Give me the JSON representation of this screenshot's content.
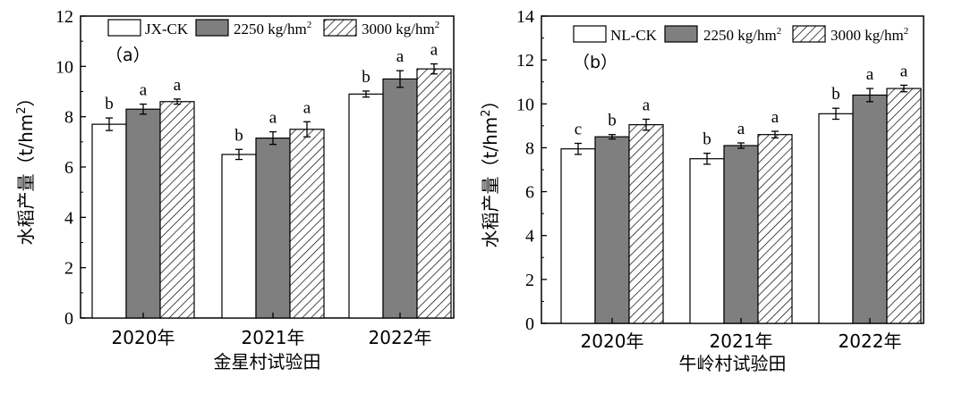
{
  "colors": {
    "ck": "#ffffff",
    "dose2250": "#7f7f7f",
    "dose3000": "hatch",
    "stroke": "#000000"
  },
  "chart_data": [
    {
      "type": "bar",
      "panel": "（a）",
      "xlabel": "金星村试验田",
      "ylabel": "水稻产量（t/hm²）",
      "ylabel_main": "水稻产量（t/hm",
      "ylabel_sup": "2",
      "ylabel_end": "）",
      "ylim": [
        0,
        12
      ],
      "yticks": [
        "0",
        "2",
        "4",
        "6",
        "8",
        "10",
        "12"
      ],
      "categories": [
        "2020年",
        "2021年",
        "2022年"
      ],
      "legend_position": "top",
      "series": [
        {
          "name": "JX-CK",
          "name_base": "JX-CK",
          "name_sup": "",
          "values": [
            7.7,
            6.5,
            8.9
          ],
          "errors": [
            0.25,
            0.2,
            0.12
          ],
          "letters": [
            "b",
            "b",
            "b"
          ]
        },
        {
          "name": "2250 kg/hm²",
          "name_base": "2250 kg/hm",
          "name_sup": "2",
          "values": [
            8.3,
            7.15,
            9.5
          ],
          "errors": [
            0.2,
            0.25,
            0.33
          ],
          "letters": [
            "a",
            "a",
            "a"
          ]
        },
        {
          "name": "3000 kg/hm²",
          "name_base": "3000 kg/hm",
          "name_sup": "2",
          "values": [
            8.6,
            7.5,
            9.9
          ],
          "errors": [
            0.1,
            0.3,
            0.2
          ],
          "letters": [
            "a",
            "a",
            "a"
          ]
        }
      ]
    },
    {
      "type": "bar",
      "panel": "（b）",
      "xlabel": "牛岭村试验田",
      "ylabel": "水稻产量（t/hm²）",
      "ylabel_main": "水稻产量（t/hm",
      "ylabel_sup": "2",
      "ylabel_end": "）",
      "ylim": [
        0,
        14
      ],
      "yticks": [
        "0",
        "2",
        "4",
        "6",
        "8",
        "10",
        "12",
        "14"
      ],
      "categories": [
        "2020年",
        "2021年",
        "2022年"
      ],
      "legend_position": "top",
      "series": [
        {
          "name": "NL-CK",
          "name_base": "NL-CK",
          "name_sup": "",
          "values": [
            7.95,
            7.5,
            9.55
          ],
          "errors": [
            0.25,
            0.25,
            0.25
          ],
          "letters": [
            "c",
            "b",
            "b"
          ]
        },
        {
          "name": "2250 kg/hm²",
          "name_base": "2250 kg/hm",
          "name_sup": "2",
          "values": [
            8.5,
            8.1,
            10.4
          ],
          "errors": [
            0.1,
            0.12,
            0.3
          ],
          "letters": [
            "b",
            "a",
            "a"
          ]
        },
        {
          "name": "3000 kg/hm²",
          "name_base": "3000 kg/hm",
          "name_sup": "2",
          "values": [
            9.05,
            8.6,
            10.7
          ],
          "errors": [
            0.25,
            0.15,
            0.15
          ],
          "letters": [
            "a",
            "a",
            "a"
          ]
        }
      ]
    }
  ]
}
